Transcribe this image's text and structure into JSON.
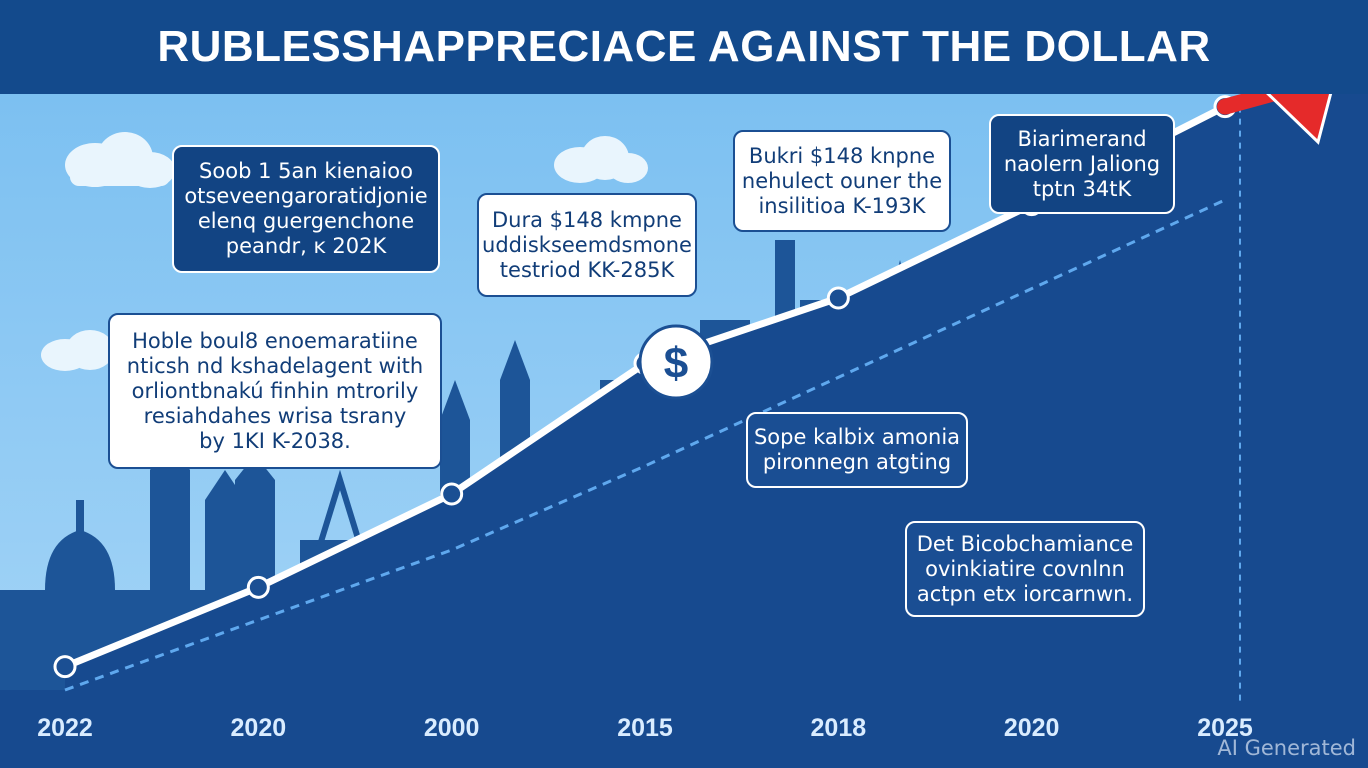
{
  "chart_data": {
    "type": "line",
    "title": "RUBLESSHAPPRECIACE AGAINST THE DOLLAR",
    "categories": [
      "2022",
      "2020",
      "2000",
      "2015",
      "2018",
      "2020",
      "2025"
    ],
    "series": [
      {
        "values": [
          0.05,
          0.22,
          0.42,
          0.7,
          0.84,
          1.04,
          1.25
        ]
      }
    ],
    "trend": {
      "values": [
        0.0,
        0.15,
        0.3,
        0.48,
        0.67,
        0.86,
        1.05
      ]
    },
    "ylim": [
      0,
      1.35
    ],
    "grid": false,
    "legend": "none"
  },
  "callouts": [
    {
      "lines": [
        "Soob 1 5an kienaioo",
        "otseveengaroratidjonie",
        "elenq guergenchone",
        "peandr, ĸ 202K"
      ]
    },
    {
      "lines": [
        "Hoble boul8 enoemaratiine",
        "nticsh nd kshadelagent with",
        "orliontbnakú finhin mtrorily",
        "resiahdahes wrisa tsrany",
        "by 1KI K-2038."
      ]
    },
    {
      "lines": [
        "Dura $148 kmpne",
        "uddiskseemdsmone",
        "testriod KK-285K"
      ]
    },
    {
      "lines": [
        "Bukri $148 knpne",
        "nehulect ouner the",
        "insilitioa K-193K"
      ]
    },
    {
      "lines": [
        "Biarimerand",
        "naolern Jaliong",
        "tptn 34tK"
      ]
    },
    {
      "lines": [
        "Sope kalbix amonia",
        "pironnegn atgting"
      ]
    },
    {
      "lines": [
        "Det Bicobchamiance",
        "ovinkiatire covnlnn",
        "actpn etx iorcarnwn."
      ]
    }
  ],
  "badge": {
    "symbol": "$"
  },
  "watermark": "AI Generated",
  "colors": {
    "line": "#ffffff",
    "trend": "#5fa8ee",
    "arrow": "#e52a2a",
    "sky": "#8fcaf3",
    "dark": "#174a8f"
  }
}
